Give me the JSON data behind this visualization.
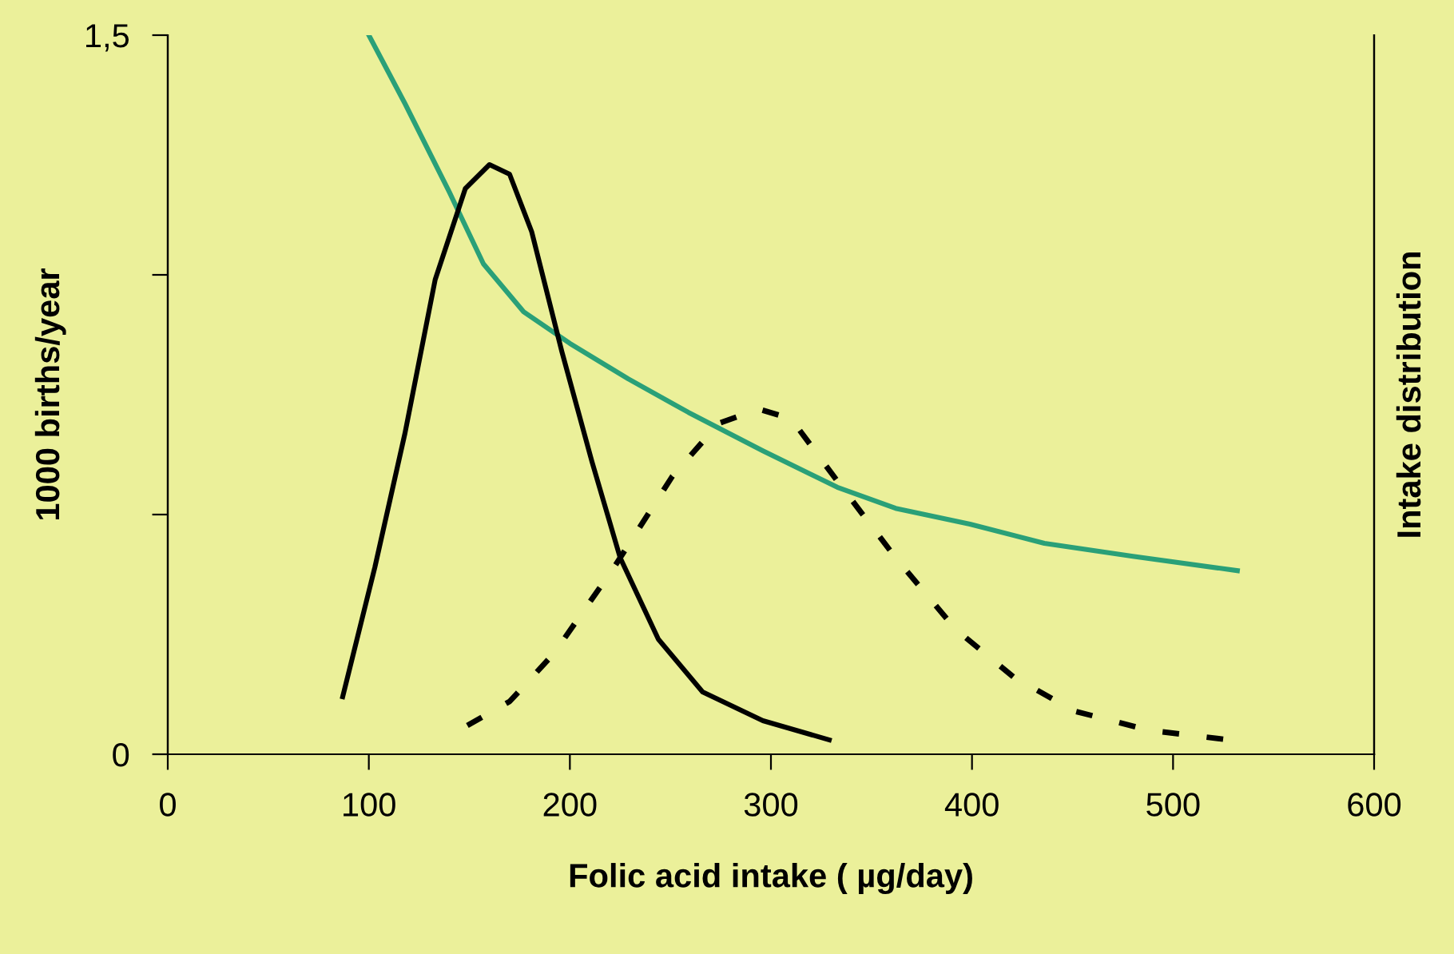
{
  "chart_data": {
    "type": "line",
    "xlabel": "Folic acid intake ( µg/day)",
    "ylabel": "1000 births/year",
    "y2label": "Intake distribution",
    "xlim": [
      0,
      600
    ],
    "xticks": [
      0,
      100,
      200,
      300,
      400,
      500,
      600
    ],
    "ylim": [
      0,
      1.5
    ],
    "yticks": [
      {
        "value": 0,
        "label": "0"
      },
      {
        "value": 0.5,
        "label": null
      },
      {
        "value": 1,
        "label": null
      },
      {
        "value": 1.5,
        "label": "1,5"
      }
    ],
    "grid": false,
    "legend": false,
    "marker": "none",
    "series": [
      {
        "color": "#2aa078",
        "line_style": "solid",
        "x": [
          100,
          118,
          140,
          157,
          177,
          200,
          229,
          259,
          296,
          333,
          362,
          399,
          436,
          480,
          532
        ],
        "values": [
          1.5,
          1.357,
          1.173,
          1.023,
          0.923,
          0.857,
          0.783,
          0.713,
          0.633,
          0.557,
          0.513,
          0.48,
          0.44,
          0.413,
          0.383
        ]
      },
      {
        "color": "#000000",
        "line_style": "solid",
        "x": [
          87,
          103,
          118,
          133,
          148,
          160,
          170,
          181,
          196,
          211,
          225,
          244,
          266,
          296,
          329
        ],
        "values": [
          0.12,
          0.39,
          0.67,
          0.99,
          1.18,
          1.23,
          1.21,
          1.09,
          0.84,
          0.61,
          0.41,
          0.24,
          0.13,
          0.07,
          0.03
        ]
      },
      {
        "color": "#000000",
        "line_style": "dotted",
        "x": [
          149,
          170,
          192,
          222,
          251,
          274,
          294,
          310,
          333,
          362,
          392,
          421,
          451,
          488,
          528
        ],
        "values": [
          0.06,
          0.11,
          0.21,
          0.39,
          0.58,
          0.69,
          0.72,
          0.7,
          0.57,
          0.41,
          0.26,
          0.16,
          0.09,
          0.05,
          0.03
        ]
      }
    ]
  }
}
